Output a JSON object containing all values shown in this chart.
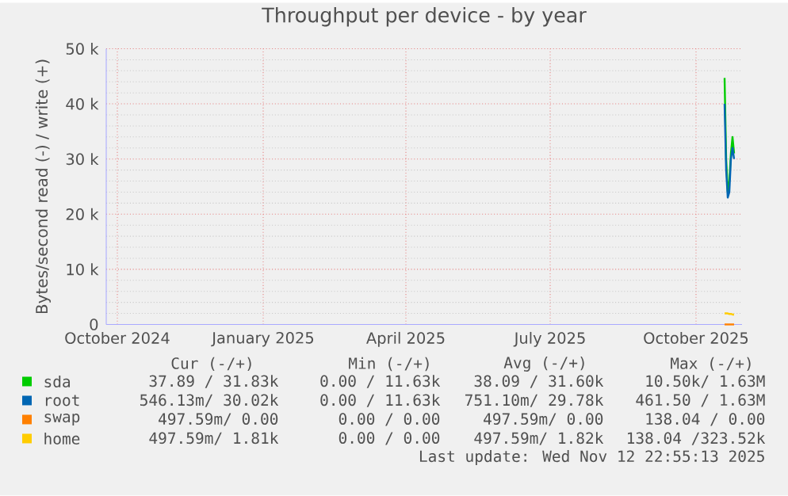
{
  "chart_data": {
    "type": "line",
    "title": "Throughput per device - by year",
    "ylabel": "Bytes/second read (-) / write (+)",
    "xlim": [
      "2024-09-24",
      "2025-10-30"
    ],
    "xticks": [
      {
        "value": "2024-10-01",
        "label": "October 2024"
      },
      {
        "value": "2025-01-01",
        "label": "January 2025"
      },
      {
        "value": "2025-04-01",
        "label": "April 2025"
      },
      {
        "value": "2025-07-01",
        "label": "July 2025"
      },
      {
        "value": "2025-10-01",
        "label": "October 2025"
      }
    ],
    "ylim": [
      0,
      50000
    ],
    "yticks": [
      0,
      {
        "value": 10000,
        "label": "10 k"
      },
      {
        "value": 20000,
        "label": "20 k"
      },
      {
        "value": 30000,
        "label": "30 k"
      },
      {
        "value": 40000,
        "label": "40 k"
      },
      {
        "value": 50000,
        "label": "50 k"
      }
    ],
    "grid": true,
    "legend": "bottom",
    "x": [
      "2025-10-19",
      "2025-10-20",
      "2025-10-21",
      "2025-10-22",
      "2025-10-23",
      "2025-10-24",
      "2025-10-25"
    ],
    "series": [
      {
        "name": "sda",
        "color": "#00cc00",
        "values": [
          44700,
          30000,
          24000,
          26000,
          31000,
          34000,
          31000
        ]
      },
      {
        "name": "root",
        "color": "#0066b3",
        "values": [
          40000,
          28000,
          23000,
          24000,
          30000,
          32000,
          30000
        ]
      },
      {
        "name": "swap",
        "color": "#ff8000",
        "values": [
          0,
          0,
          0,
          0,
          0,
          0,
          0
        ]
      },
      {
        "name": "home",
        "color": "#ffcc00",
        "values": [
          2000,
          2000,
          2000,
          1900,
          1900,
          1800,
          1800
        ]
      }
    ],
    "annotations": [
      "Cur (-/+)",
      "Min (-/+)",
      "Avg (-/+)",
      "Max (-/+)",
      "37.89 / 31.83k",
      "0.00 / 11.63k",
      "38.09 / 31.60k",
      "10.50k/  1.63M",
      "546.13m/ 30.02k",
      "0.00 / 11.63k",
      "751.10m/ 29.78k",
      "461.50 /  1.63M",
      "497.59m/  0.00",
      "0.00 /  0.00",
      "497.59m/  0.00",
      "138.04 /  0.00",
      "497.59m/  1.81k",
      "0.00 /  0.00",
      "497.59m/  1.82k",
      "138.04 /323.52k",
      "Last update: Wed Nov 12 22:55:13 2025"
    ]
  }
}
